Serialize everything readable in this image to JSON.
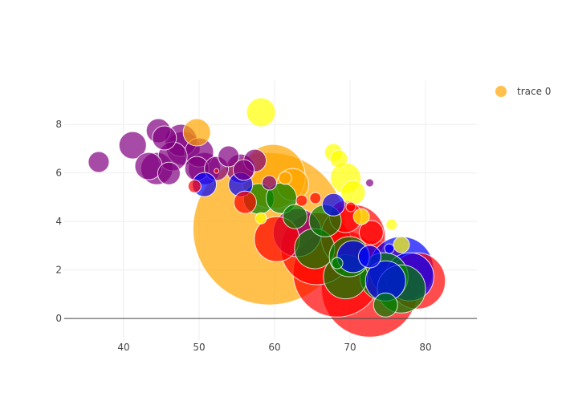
{
  "chart_data": {
    "type": "scatter",
    "mode": "bubble",
    "title": "",
    "xlabel": "",
    "ylabel": "",
    "xlim": [
      32.13,
      86.8
    ],
    "ylim": [
      -0.92,
      9.82
    ],
    "x_ticks": [
      40,
      50,
      60,
      70,
      80
    ],
    "y_ticks": [
      0,
      2,
      4,
      6,
      8
    ],
    "grid": true,
    "legend": {
      "position": "top-right",
      "entries": [
        {
          "name": "trace 0",
          "color": "#ffa500"
        }
      ]
    },
    "opacity": 0.7,
    "colors": {
      "purple": "#800080",
      "orange": "#ffa500",
      "yellow": "#ffff00",
      "red": "#ff0000",
      "blue": "#0000ff",
      "green": "#008000"
    },
    "series": [
      {
        "name": "trace 0",
        "points": [
          [
            36.7,
            6.45,
            26,
            "purple"
          ],
          [
            41.2,
            7.14,
            34,
            "purple"
          ],
          [
            44.6,
            7.74,
            30,
            "purple"
          ],
          [
            43.3,
            6.28,
            34,
            "purple"
          ],
          [
            45.4,
            7.44,
            30,
            "purple"
          ],
          [
            46.0,
            5.98,
            28,
            "purple"
          ],
          [
            47.6,
            7.34,
            40,
            "purple"
          ],
          [
            47.9,
            7.01,
            42,
            "purple"
          ],
          [
            50.0,
            6.84,
            36,
            "purple"
          ],
          [
            50.7,
            6.18,
            40,
            "purple"
          ],
          [
            49.7,
            6.18,
            30,
            "purple"
          ],
          [
            52.3,
            6.18,
            30,
            "purple"
          ],
          [
            53.9,
            6.68,
            26,
            "purple"
          ],
          [
            55.5,
            6.18,
            36,
            "purple"
          ],
          [
            57.4,
            6.51,
            28,
            "purple"
          ],
          [
            55.9,
            6.12,
            26,
            "purple"
          ],
          [
            59.3,
            5.59,
            18,
            "purple"
          ],
          [
            72.6,
            5.59,
            10,
            "purple"
          ],
          [
            46.5,
            6.68,
            36,
            "purple"
          ],
          [
            44.4,
            6.18,
            40,
            "purple"
          ],
          [
            63.0,
            3.54,
            60,
            "purple"
          ],
          [
            49.7,
            7.67,
            34,
            "orange"
          ],
          [
            59.8,
            5.85,
            80,
            "orange"
          ],
          [
            59.3,
            3.7,
            190,
            "orange"
          ],
          [
            62.4,
            5.52,
            40,
            "orange"
          ],
          [
            61.4,
            5.79,
            16,
            "orange"
          ],
          [
            58.2,
            8.5,
            36,
            "yellow"
          ],
          [
            67.8,
            6.84,
            22,
            "yellow"
          ],
          [
            68.5,
            6.58,
            22,
            "yellow"
          ],
          [
            69.4,
            5.79,
            38,
            "yellow"
          ],
          [
            70.4,
            5.19,
            30,
            "yellow"
          ],
          [
            75.5,
            3.87,
            14,
            "yellow"
          ],
          [
            58.2,
            4.13,
            14,
            "yellow"
          ],
          [
            76.8,
            3.04,
            20,
            "yellow"
          ],
          [
            71.5,
            4.2,
            20,
            "yellow"
          ],
          [
            49.4,
            5.45,
            16,
            "red"
          ],
          [
            56.1,
            4.79,
            28,
            "red"
          ],
          [
            60.3,
            3.27,
            56,
            "red"
          ],
          [
            65.6,
            2.88,
            90,
            "red"
          ],
          [
            68.3,
            1.88,
            110,
            "red"
          ],
          [
            72.6,
            1.22,
            120,
            "red"
          ],
          [
            78.9,
            1.55,
            70,
            "red"
          ],
          [
            70.4,
            3.37,
            80,
            "red"
          ],
          [
            69.4,
            4.2,
            40,
            "red"
          ],
          [
            63.6,
            4.86,
            14,
            "red"
          ],
          [
            65.4,
            4.96,
            14,
            "red"
          ],
          [
            52.3,
            6.08,
            6,
            "red"
          ],
          [
            70.1,
            4.6,
            12,
            "red"
          ],
          [
            72.8,
            3.54,
            30,
            "red"
          ],
          [
            72.6,
            2.55,
            28,
            "blue"
          ],
          [
            76.8,
            2.05,
            80,
            "blue"
          ],
          [
            74.7,
            1.55,
            50,
            "blue"
          ],
          [
            77.9,
            1.72,
            60,
            "blue"
          ],
          [
            67.8,
            4.69,
            28,
            "blue"
          ],
          [
            55.5,
            5.52,
            30,
            "blue"
          ],
          [
            50.7,
            5.52,
            30,
            "blue"
          ],
          [
            75.2,
            2.88,
            12,
            "blue"
          ],
          [
            70.4,
            2.55,
            40,
            "blue"
          ],
          [
            57.9,
            4.93,
            38,
            "green"
          ],
          [
            60.9,
            4.96,
            38,
            "green"
          ],
          [
            62.7,
            4.2,
            30,
            "green"
          ],
          [
            65.3,
            2.88,
            50,
            "green"
          ],
          [
            66.7,
            4.03,
            40,
            "green"
          ],
          [
            69.4,
            1.72,
            55,
            "green"
          ],
          [
            74.5,
            1.72,
            60,
            "green"
          ],
          [
            69.9,
            2.55,
            50,
            "green"
          ],
          [
            76.8,
            1.22,
            60,
            "green"
          ],
          [
            74.7,
            0.56,
            30,
            "green"
          ],
          [
            68.3,
            2.28,
            14,
            "green"
          ]
        ]
      }
    ]
  }
}
